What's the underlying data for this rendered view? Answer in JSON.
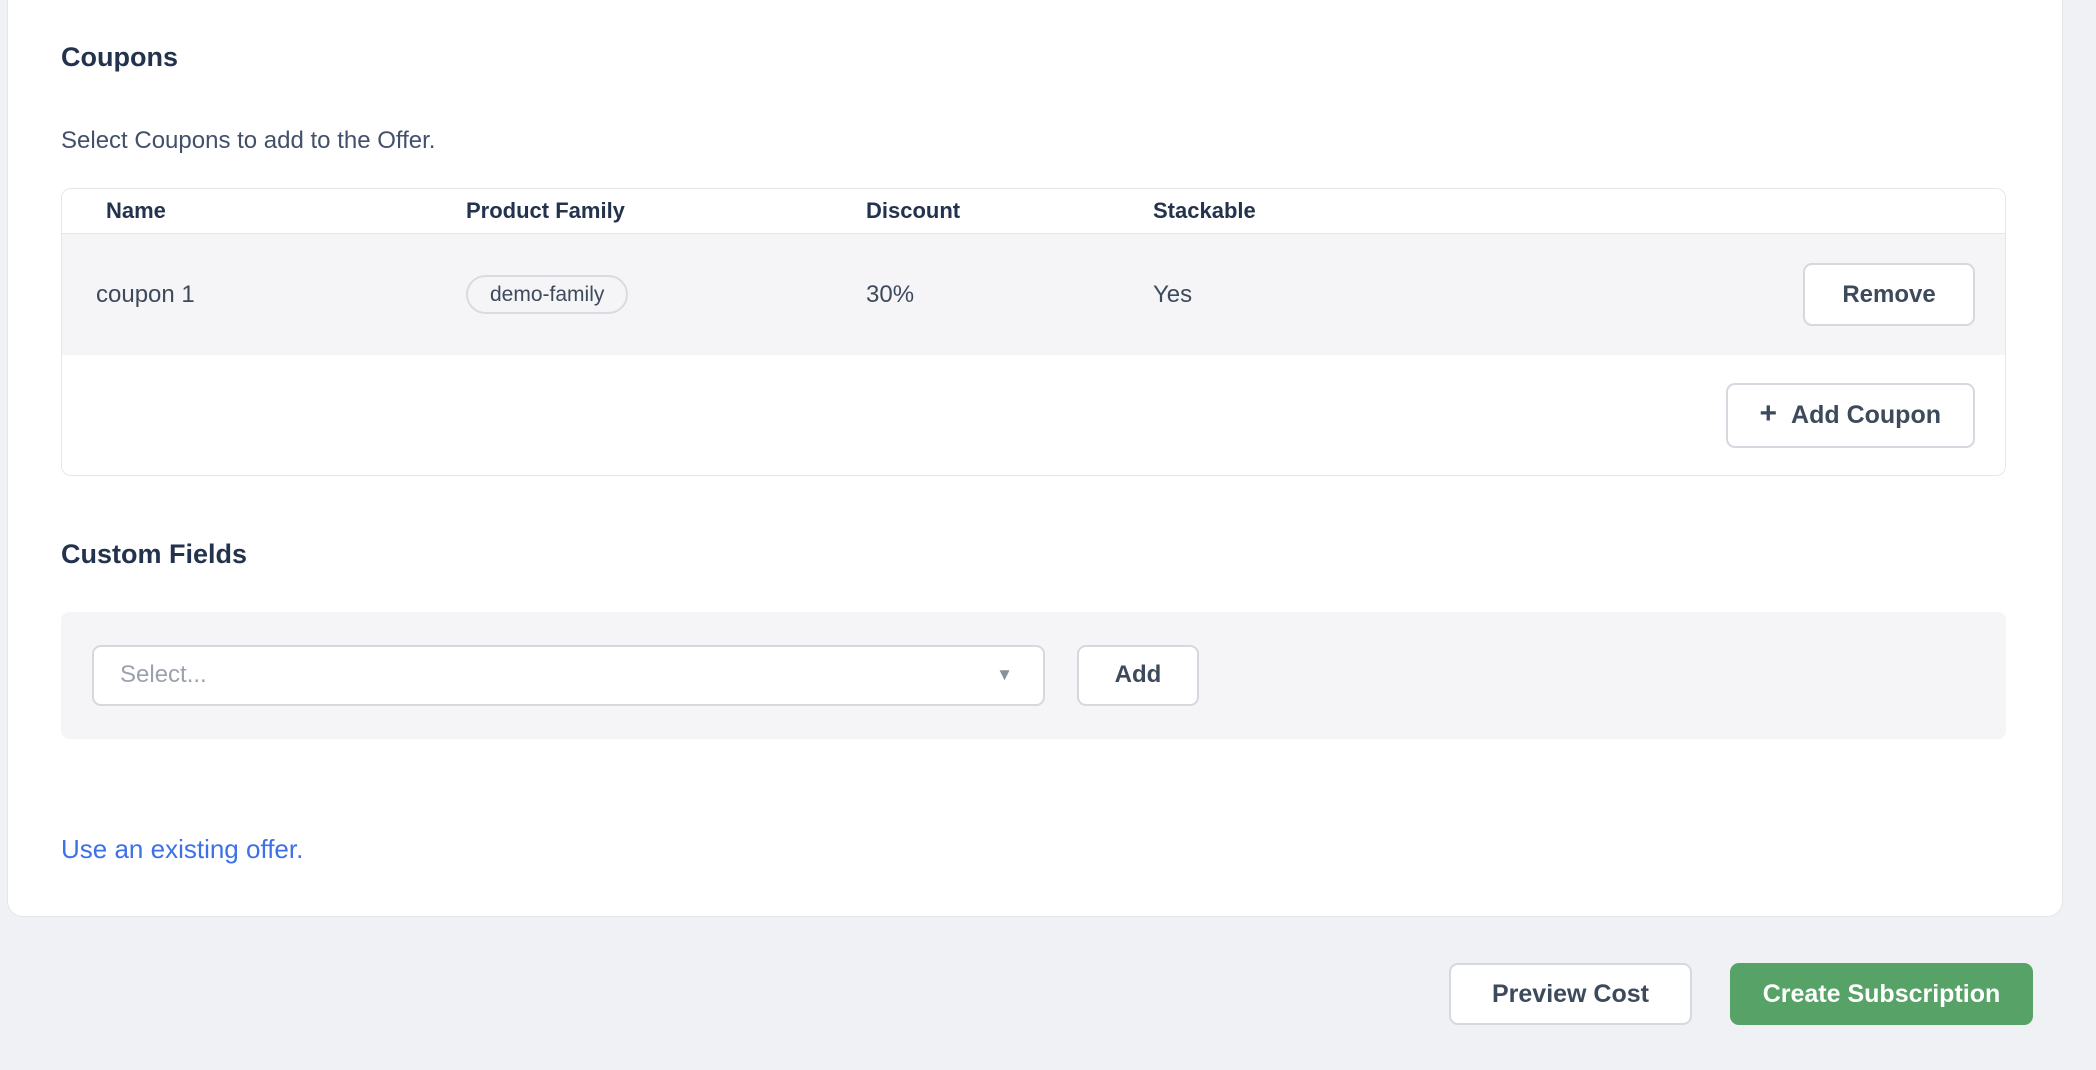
{
  "coupons_section": {
    "title": "Coupons",
    "subtitle": "Select Coupons to add to the Offer.",
    "table": {
      "headers": [
        "Name",
        "Product Family",
        "Discount",
        "Stackable"
      ],
      "rows": [
        {
          "name": "coupon 1",
          "product_family": "demo-family",
          "discount": "30%",
          "stackable": "Yes",
          "remove_label": "Remove"
        }
      ],
      "add_button": {
        "icon": "plus-icon",
        "glyph": "+",
        "label": "Add Coupon"
      }
    }
  },
  "custom_fields_section": {
    "title": "Custom Fields",
    "select": {
      "placeholder": "Select...",
      "chevron_icon": "chevron-down-icon",
      "chevron_glyph": "▼"
    },
    "add_button_label": "Add"
  },
  "links": {
    "use_existing_offer": "Use an existing offer."
  },
  "actions": {
    "preview_cost": "Preview Cost",
    "create_subscription": "Create Subscription"
  },
  "colors": {
    "page_bg": "#f0f1f5",
    "card_bg": "#ffffff",
    "heading_text": "#24334d",
    "body_text": "#3d4a5c",
    "muted_text": "#9ba2ae",
    "border": "#e4e6ea",
    "control_border": "#d5d8de",
    "row_bg": "#f5f5f7",
    "link_blue": "#3e70e8",
    "accent_green": "#57a266"
  }
}
